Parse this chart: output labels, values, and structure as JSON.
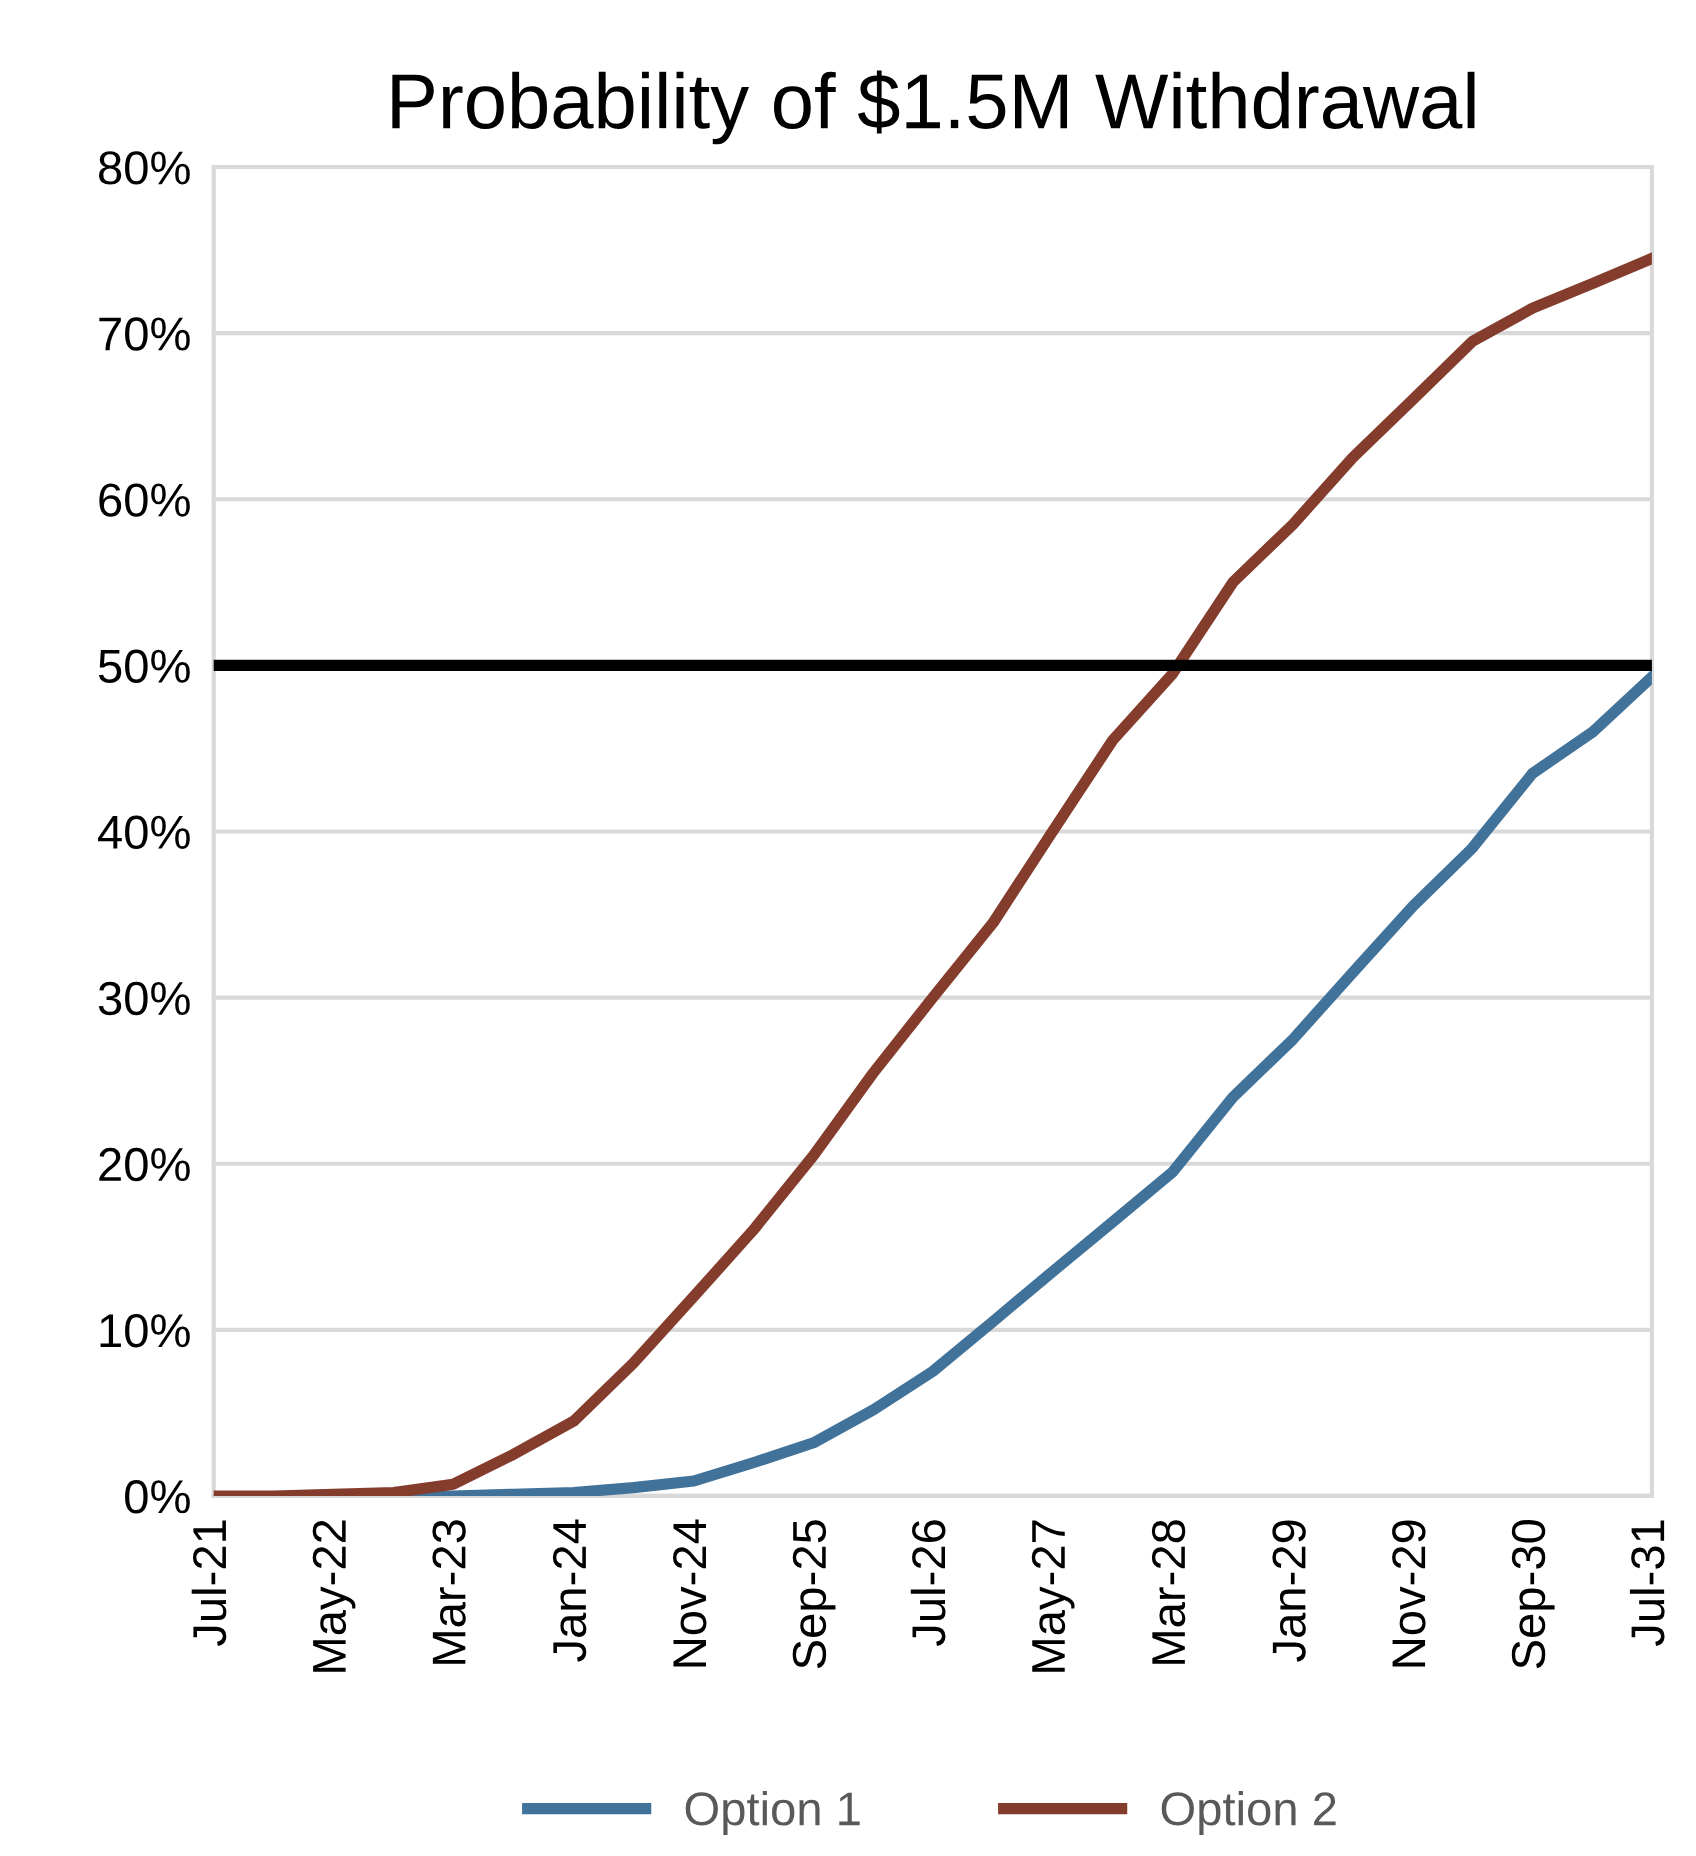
{
  "chart_data": {
    "type": "line",
    "title": "Probability of $1.5M Withdrawal",
    "x": [
      "2021-07",
      "2021-12",
      "2022-05",
      "2022-10",
      "2023-03",
      "2023-08",
      "2024-01",
      "2024-06",
      "2024-11",
      "2025-04",
      "2025-09",
      "2026-02",
      "2026-07",
      "2026-12",
      "2027-05",
      "2027-10",
      "2028-03",
      "2028-08",
      "2029-01",
      "2029-06",
      "2029-11",
      "2030-04",
      "2030-09",
      "2031-02",
      "2031-07"
    ],
    "series": [
      {
        "name": "Option 1",
        "color": "#41729a",
        "values": [
          null,
          null,
          0,
          0,
          0,
          0.1,
          0.2,
          0.5,
          0.9,
          2,
          3.2,
          5.2,
          7.5,
          10.5,
          13.5,
          16.5,
          19.5,
          24,
          27.5,
          31.5,
          35.5,
          39,
          43.5,
          46,
          49.3
        ]
      },
      {
        "name": "Option 2",
        "color": "#843c2c",
        "values": [
          0,
          0,
          0.1,
          0.2,
          0.7,
          2.5,
          4.5,
          8,
          12,
          16,
          20.5,
          25.5,
          30,
          34.5,
          40,
          45.5,
          49.5,
          55,
          58.5,
          62.5,
          66,
          69.5,
          71.5,
          73,
          74.5
        ]
      }
    ],
    "xlim": [
      "2021-07",
      "2031-07"
    ],
    "xticks": [
      {
        "value": "2021-07",
        "label": "Jul-21"
      },
      {
        "value": "2022-05",
        "label": "May-22"
      },
      {
        "value": "2023-03",
        "label": "Mar-23"
      },
      {
        "value": "2024-01",
        "label": "Jan-24"
      },
      {
        "value": "2024-11",
        "label": "Nov-24"
      },
      {
        "value": "2025-09",
        "label": "Sep-25"
      },
      {
        "value": "2026-07",
        "label": "Jul-26"
      },
      {
        "value": "2027-05",
        "label": "May-27"
      },
      {
        "value": "2028-03",
        "label": "Mar-28"
      },
      {
        "value": "2029-01",
        "label": "Jan-29"
      },
      {
        "value": "2029-11",
        "label": "Nov-29"
      },
      {
        "value": "2030-09",
        "label": "Sep-30"
      },
      {
        "value": "2031-07",
        "label": "Jul-31"
      }
    ],
    "ylim": [
      0,
      80
    ],
    "yticks": [
      {
        "value": 0,
        "label": "0%"
      },
      {
        "value": 10,
        "label": "10%"
      },
      {
        "value": 20,
        "label": "20%"
      },
      {
        "value": 30,
        "label": "30%"
      },
      {
        "value": 40,
        "label": "40%"
      },
      {
        "value": 50,
        "label": "50%"
      },
      {
        "value": 60,
        "label": "60%"
      },
      {
        "value": 70,
        "label": "70%"
      },
      {
        "value": 80,
        "label": "80%"
      }
    ],
    "ref_lines": [
      {
        "axis": "y",
        "value": 50,
        "color": "#000000",
        "line_style": "solid"
      }
    ],
    "grid": "y",
    "legend": "bottom",
    "marker": "none",
    "line_style": "solid"
  }
}
